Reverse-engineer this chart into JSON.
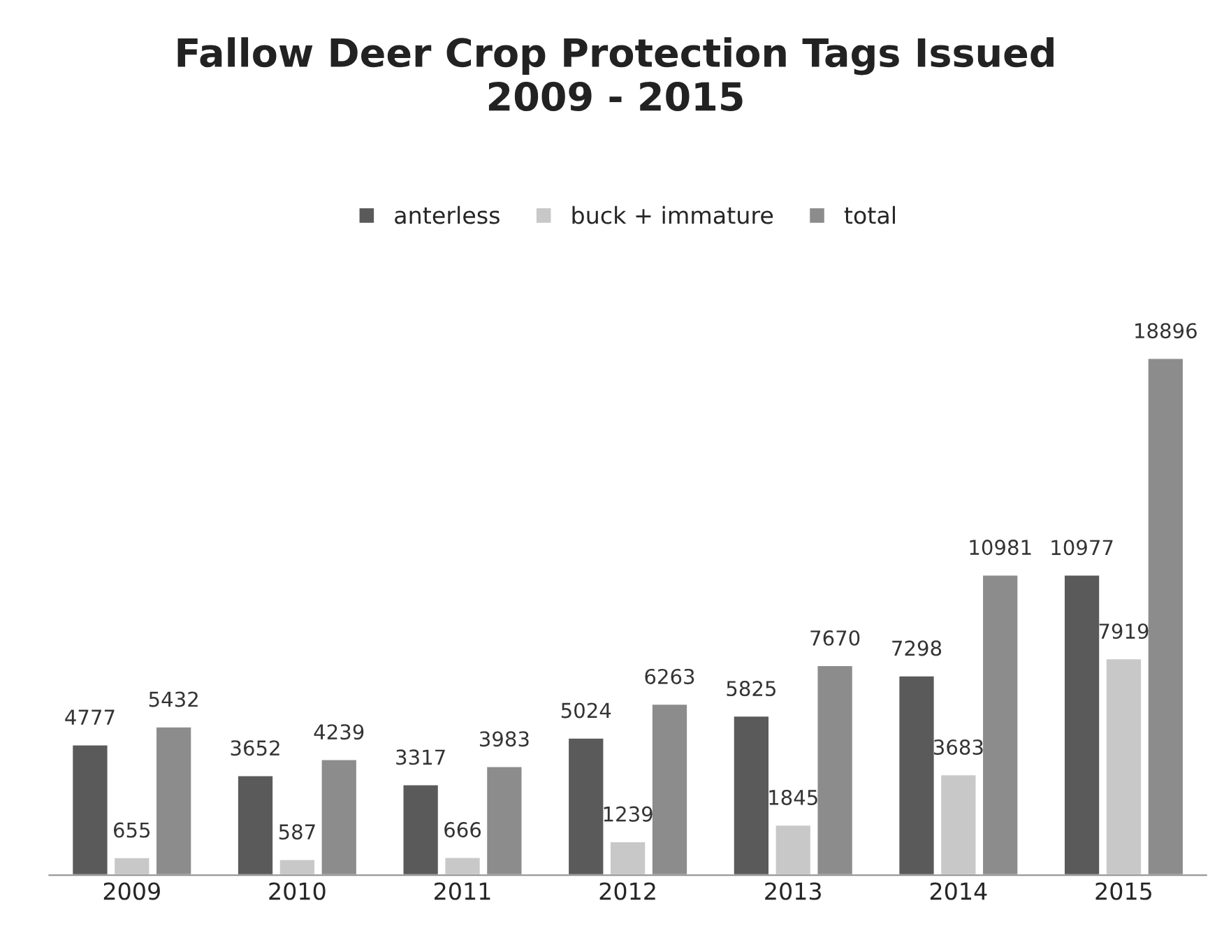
{
  "chart_data": {
    "type": "bar",
    "title": "Fallow Deer Crop Protection Tags Issued\n2009 - 2015",
    "categories": [
      "2009",
      "2010",
      "2011",
      "2012",
      "2013",
      "2014",
      "2015"
    ],
    "series": [
      {
        "name": "anterless",
        "color": "#5a5a5a",
        "values": [
          4777,
          3652,
          3317,
          5024,
          5825,
          7298,
          10977
        ]
      },
      {
        "name": "buck + immature",
        "color": "#c8c8c8",
        "values": [
          655,
          587,
          666,
          1239,
          1845,
          3683,
          7919
        ]
      },
      {
        "name": "total",
        "color": "#8c8c8c",
        "values": [
          5432,
          4239,
          3983,
          6263,
          7670,
          10981,
          18896
        ]
      }
    ],
    "data_labels": true,
    "legend": "top",
    "grid": false
  }
}
